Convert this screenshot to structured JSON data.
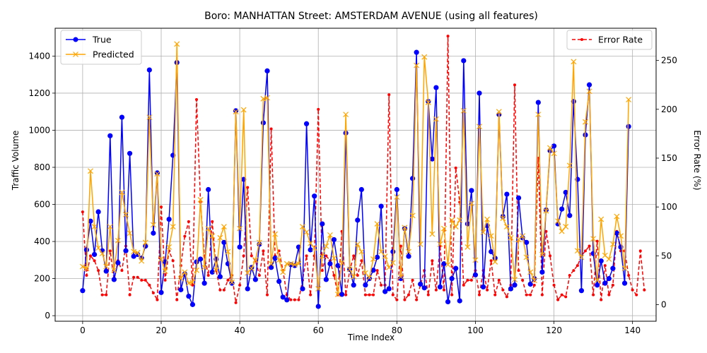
{
  "chart_data": {
    "type": "line",
    "title": "Boro: MANHATTAN Street: AMSTERDAM AVENUE (using all features)",
    "xlabel": "Time Index",
    "ylabel": "Traffic Volume",
    "y2label": "Error Rate (%)",
    "xlim": [
      -7,
      146
    ],
    "ylim": [
      -30,
      1550
    ],
    "y2lim": [
      -17,
      283
    ],
    "xticks": [
      0,
      20,
      40,
      60,
      80,
      100,
      120,
      140
    ],
    "yticks": [
      0,
      200,
      400,
      600,
      800,
      1000,
      1200,
      1400
    ],
    "y2ticks": [
      0,
      50,
      100,
      150,
      200,
      250
    ],
    "grid": true,
    "legend_left": "upper-left",
    "legend_right": "upper-right",
    "series": [
      {
        "name": "True",
        "axis": "left",
        "color": "#0000ff",
        "marker": "circle",
        "values": [
          135,
          355,
          510,
          330,
          560,
          350,
          240,
          970,
          195,
          285,
          1070,
          350,
          875,
          320,
          330,
          310,
          375,
          1325,
          445,
          770,
          125,
          290,
          520,
          865,
          1365,
          140,
          225,
          105,
          60,
          290,
          305,
          175,
          680,
          235,
          305,
          210,
          395,
          280,
          175,
          1105,
          370,
          735,
          145,
          260,
          195,
          385,
          1040,
          1320,
          260,
          310,
          185,
          100,
          85,
          275,
          270,
          370,
          145,
          1035,
          355,
          645,
          50,
          495,
          195,
          280,
          410,
          270,
          115,
          985,
          250,
          165,
          515,
          680,
          165,
          200,
          245,
          315,
          590,
          130,
          145,
          345,
          680,
          200,
          470,
          320,
          740,
          1420,
          170,
          150,
          1155,
          845,
          1230,
          155,
          280,
          75,
          200,
          255,
          80,
          1375,
          495,
          675,
          220,
          1200,
          155,
          485,
          345,
          310,
          1085,
          535,
          655,
          145,
          165,
          635,
          420,
          395,
          170,
          200,
          1150,
          235,
          570,
          890,
          915,
          495,
          575,
          665,
          540,
          1155,
          735,
          135,
          975,
          1245,
          335,
          165,
          295,
          175,
          200,
          255,
          445,
          370,
          175,
          1020
        ]
      },
      {
        "name": "Predicted",
        "axis": "left",
        "color": "#ffa500",
        "marker": "x",
        "values": [
          265,
          255,
          780,
          480,
          365,
          335,
          265,
          480,
          245,
          405,
          665,
          545,
          445,
          345,
          340,
          295,
          395,
          1070,
          490,
          765,
          305,
          240,
          370,
          480,
          1465,
          200,
          235,
          175,
          180,
          245,
          625,
          260,
          470,
          430,
          245,
          420,
          480,
          345,
          180,
          1100,
          470,
          1110,
          230,
          255,
          300,
          395,
          1170,
          1175,
          280,
          440,
          300,
          235,
          280,
          280,
          275,
          280,
          480,
          450,
          390,
          365,
          145,
          320,
          375,
          435,
          310,
          115,
          285,
          1085,
          250,
          210,
          385,
          345,
          230,
          205,
          305,
          495,
          345,
          320,
          260,
          285,
          640,
          210,
          475,
          345,
          540,
          1350,
          385,
          1395,
          1150,
          440,
          1060,
          385,
          470,
          275,
          515,
          480,
          515,
          1105,
          370,
          605,
          300,
          1020,
          450,
          520,
          430,
          290,
          1100,
          525,
          480,
          420,
          195,
          410,
          430,
          315,
          235,
          190,
          1085,
          330,
          565,
          905,
          875,
          510,
          455,
          480,
          810,
          1370,
          350,
          315,
          1045,
          1210,
          415,
          190,
          520,
          325,
          305,
          385,
          535,
          430,
          255,
          1165
        ]
      },
      {
        "name": "Error Rate",
        "axis": "right",
        "color": "#ff0000",
        "marker": "dot",
        "dashed": true,
        "values": [
          95,
          30,
          50,
          45,
          35,
          10,
          10,
          55,
          25,
          45,
          35,
          60,
          10,
          28,
          28,
          25,
          25,
          20,
          12,
          5,
          100,
          25,
          55,
          45,
          5,
          40,
          70,
          85,
          20,
          210,
          105,
          50,
          30,
          85,
          35,
          15,
          15,
          25,
          30,
          2,
          20,
          50,
          120,
          50,
          45,
          30,
          55,
          10,
          180,
          50,
          55,
          35,
          10,
          5,
          5,
          5,
          25,
          50,
          10,
          50,
          200,
          35,
          50,
          45,
          30,
          10,
          75,
          10,
          35,
          50,
          30,
          45,
          10,
          10,
          10,
          35,
          20,
          20,
          215,
          10,
          5,
          60,
          5,
          10,
          25,
          5,
          20,
          35,
          10,
          45,
          15,
          60,
          15,
          275,
          10,
          140,
          105,
          20,
          25,
          25,
          35,
          10,
          35,
          15,
          45,
          10,
          25,
          15,
          8,
          20,
          225,
          35,
          25,
          10,
          10,
          20,
          150,
          10,
          75,
          50,
          20,
          5,
          10,
          8,
          30,
          35,
          40,
          50,
          55,
          60,
          10,
          65,
          5,
          40,
          10,
          20,
          75,
          55,
          55,
          30,
          15,
          10,
          55,
          15
        ]
      }
    ]
  }
}
